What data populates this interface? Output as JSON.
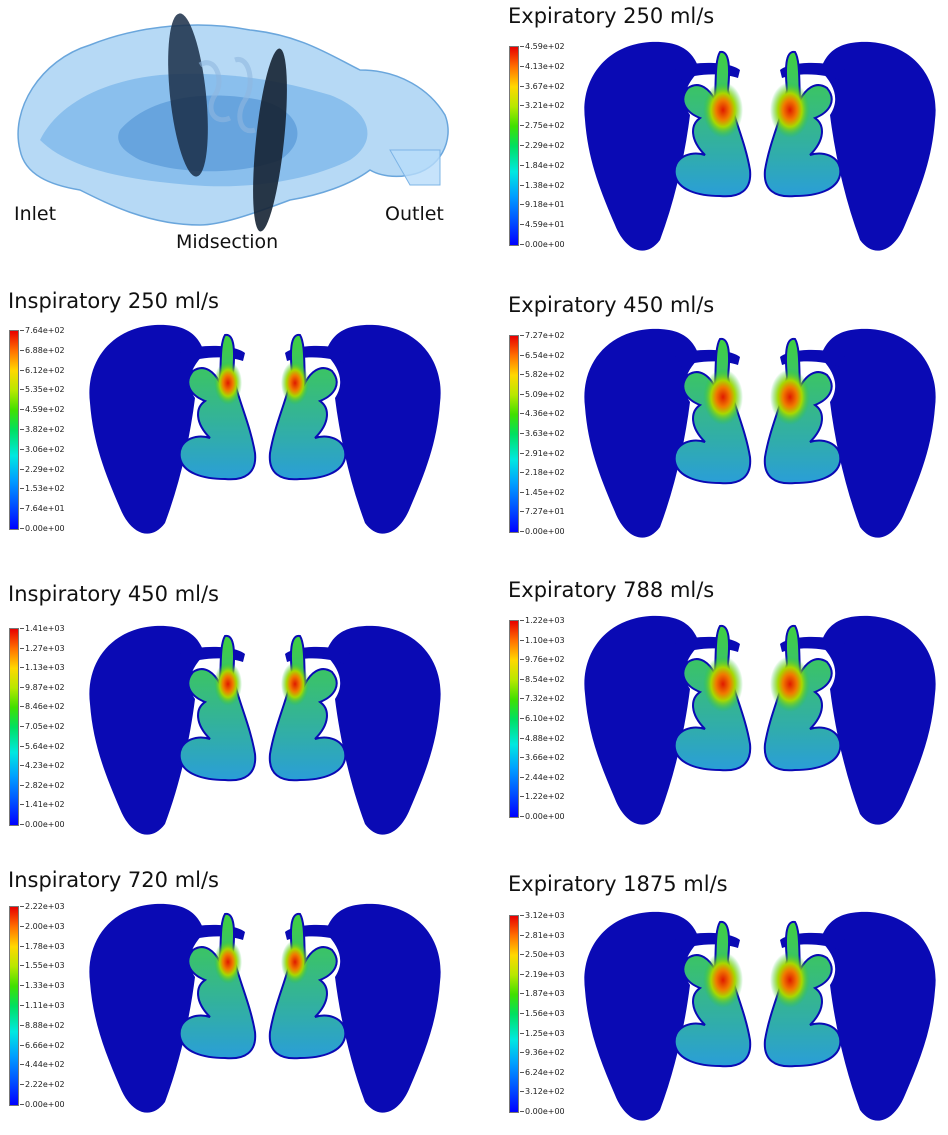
{
  "geometry": {
    "labels": {
      "inlet": "Inlet",
      "midsection": "Midsection",
      "outlet": "Outlet"
    }
  },
  "panels": [
    {
      "title": "Expiratory 250 ml/s",
      "ticks": [
        "4.59e+02",
        "4.13e+02",
        "3.67e+02",
        "3.21e+02",
        "2.75e+02",
        "2.29e+02",
        "1.84e+02",
        "1.38e+02",
        "9.18e+01",
        "4.59e+01",
        "0.00e+00"
      ]
    },
    {
      "title": "Inspiratory 250 ml/s",
      "ticks": [
        "7.64e+02",
        "6.88e+02",
        "6.12e+02",
        "5.35e+02",
        "4.59e+02",
        "3.82e+02",
        "3.06e+02",
        "2.29e+02",
        "1.53e+02",
        "7.64e+01",
        "0.00e+00"
      ]
    },
    {
      "title": "Expiratory 450 ml/s",
      "ticks": [
        "7.27e+02",
        "6.54e+02",
        "5.82e+02",
        "5.09e+02",
        "4.36e+02",
        "3.63e+02",
        "2.91e+02",
        "2.18e+02",
        "1.45e+02",
        "7.27e+01",
        "0.00e+00"
      ]
    },
    {
      "title": "Inspiratory 450 ml/s",
      "ticks": [
        "1.41e+03",
        "1.27e+03",
        "1.13e+03",
        "9.87e+02",
        "8.46e+02",
        "7.05e+02",
        "5.64e+02",
        "4.23e+02",
        "2.82e+02",
        "1.41e+02",
        "0.00e+00"
      ]
    },
    {
      "title": "Expiratory 788 ml/s",
      "ticks": [
        "1.22e+03",
        "1.10e+03",
        "9.76e+02",
        "8.54e+02",
        "7.32e+02",
        "6.10e+02",
        "4.88e+02",
        "3.66e+02",
        "2.44e+02",
        "1.22e+02",
        "0.00e+00"
      ]
    },
    {
      "title": "Inspiratory 720 ml/s",
      "ticks": [
        "2.22e+03",
        "2.00e+03",
        "1.78e+03",
        "1.55e+03",
        "1.33e+03",
        "1.11e+03",
        "8.88e+02",
        "6.66e+02",
        "4.44e+02",
        "2.22e+02",
        "0.00e+00"
      ]
    },
    {
      "title": "Expiratory 1875 ml/s",
      "ticks": [
        "3.12e+03",
        "2.81e+03",
        "2.50e+03",
        "2.19e+03",
        "1.87e+03",
        "1.56e+03",
        "1.25e+03",
        "9.36e+02",
        "6.24e+02",
        "3.12e+02",
        "0.00e+00"
      ]
    }
  ],
  "colors": {
    "domain": "#0a0ab4",
    "scale_low": "#0000ff",
    "scale_mid": "#00e060",
    "scale_high": "#e80000"
  }
}
